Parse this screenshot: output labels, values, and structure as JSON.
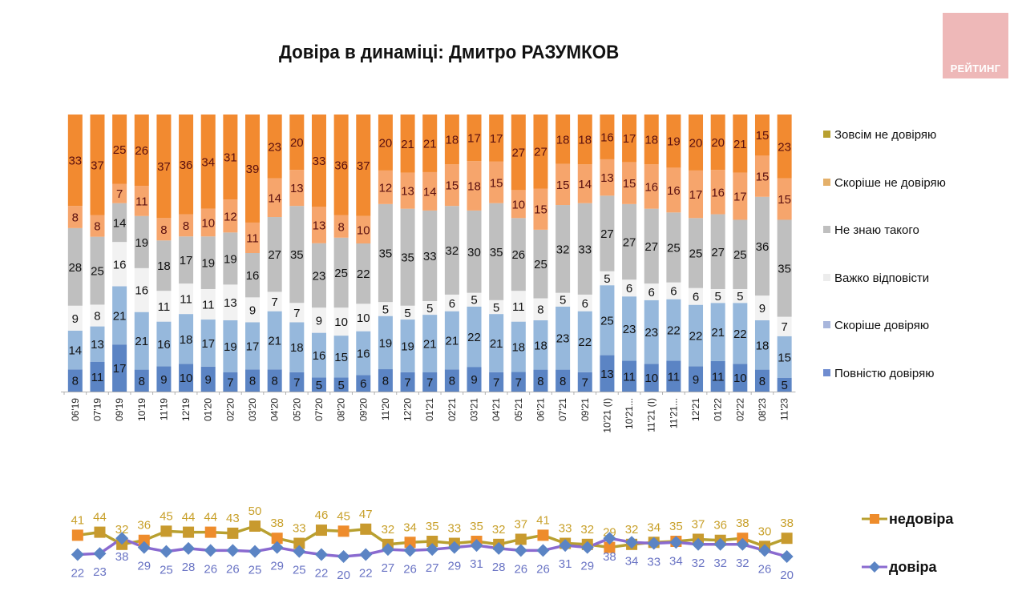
{
  "header": {
    "title": "Довіра в динаміці: Дмитро РАЗУМКОВ",
    "logo_text": "РЕЙТИНГ"
  },
  "colors": {
    "full_trust": "#5b84c4",
    "rather_trust": "#96b8dc",
    "hard_to_say": "#f2f2f2",
    "dont_know": "#bfbfbf",
    "rather_not_trust": "#f6a56c",
    "not_trust_at_all": "#f28a30",
    "distrust_line": "#b8a030",
    "distrust_marker": "#ee8c2c",
    "trust_line": "#8a6ad0",
    "trust_marker": "#5b84c4",
    "distrust_label": "#c8a02a",
    "trust_label": "#6a74c4"
  },
  "chart_data": [
    {
      "type": "bar",
      "stacked": true,
      "title": "Довіра в динаміці: Дмитро РАЗУМКОВ",
      "xlabel": "",
      "ylabel": "",
      "ylim": [
        0,
        100
      ],
      "grid": false,
      "legend_position": "right",
      "categories": [
        "06'19",
        "07'19",
        "09'19",
        "10'19",
        "11'19",
        "12'19",
        "01'20",
        "02'20",
        "03'20",
        "04'20",
        "05'20",
        "07'20",
        "08'20",
        "09'20",
        "11'20",
        "12'20",
        "01'21",
        "02'21",
        "03'21",
        "04'21",
        "05'21",
        "06'21",
        "07'21",
        "09'21",
        "10'21 (I)",
        "10'21...",
        "11'21 (I)",
        "11'21...",
        "12'21",
        "01'22",
        "02'22",
        "08'23",
        "11'23"
      ],
      "series": [
        {
          "name": "Повністю довіряю",
          "key": "full_trust",
          "values": [
            8,
            11,
            17,
            8,
            9,
            10,
            9,
            7,
            8,
            8,
            7,
            5,
            5,
            6,
            8,
            7,
            7,
            8,
            9,
            7,
            7,
            8,
            8,
            7,
            13,
            11,
            10,
            11,
            9,
            11,
            10,
            8,
            5
          ]
        },
        {
          "name": "Скоріше довіряю",
          "key": "rather_trust",
          "values": [
            14,
            13,
            21,
            21,
            16,
            18,
            17,
            19,
            17,
            21,
            18,
            16,
            15,
            16,
            19,
            19,
            21,
            21,
            22,
            21,
            18,
            18,
            23,
            22,
            25,
            23,
            23,
            22,
            22,
            21,
            22,
            18,
            15
          ]
        },
        {
          "name": "Важко відповісти",
          "key": "hard_to_say",
          "values": [
            9,
            8,
            16,
            16,
            11,
            11,
            11,
            13,
            9,
            7,
            7,
            9,
            10,
            10,
            5,
            5,
            5,
            6,
            5,
            5,
            11,
            8,
            5,
            6,
            5,
            6,
            6,
            6,
            6,
            5,
            5,
            9,
            7
          ]
        },
        {
          "name": "Не знаю такого",
          "key": "dont_know",
          "values": [
            28,
            25,
            14,
            19,
            18,
            17,
            19,
            19,
            16,
            27,
            35,
            23,
            25,
            22,
            35,
            35,
            33,
            32,
            30,
            35,
            26,
            25,
            32,
            33,
            27,
            27,
            27,
            25,
            25,
            27,
            25,
            36,
            35
          ]
        },
        {
          "name": "Скоріше не довіряю",
          "key": "rather_not_trust",
          "values": [
            8,
            8,
            7,
            11,
            8,
            8,
            10,
            12,
            11,
            14,
            13,
            13,
            8,
            10,
            12,
            13,
            14,
            15,
            18,
            15,
            10,
            15,
            15,
            14,
            13,
            15,
            16,
            16,
            17,
            16,
            17,
            15,
            15
          ]
        },
        {
          "name": "Зовсім не довіряю",
          "key": "not_trust_at_all",
          "values": [
            33,
            37,
            25,
            26,
            37,
            36,
            34,
            31,
            39,
            23,
            20,
            33,
            36,
            37,
            20,
            21,
            21,
            18,
            17,
            17,
            27,
            27,
            18,
            18,
            16,
            17,
            18,
            19,
            20,
            20,
            21,
            15,
            23
          ]
        }
      ],
      "legend_order": [
        "Зовсім не довіряю",
        "Скоріше не довіряю",
        "Не знаю такого",
        "Важко відповісти",
        "Скоріше довіряю",
        "Повністю довіряю"
      ]
    },
    {
      "type": "line",
      "title": "",
      "xlabel": "",
      "ylabel": "",
      "grid": false,
      "legend_position": "right",
      "categories": [
        "06'19",
        "07'19",
        "09'19",
        "10'19",
        "11'19",
        "12'19",
        "01'20",
        "02'20",
        "03'20",
        "04'20",
        "05'20",
        "07'20",
        "08'20",
        "09'20",
        "11'20",
        "12'20",
        "01'21",
        "02'21",
        "03'21",
        "04'21",
        "05'21",
        "06'21",
        "07'21",
        "09'21",
        "10'21 (I)",
        "10'21...",
        "11'21 (I)",
        "11'21...",
        "12'21",
        "01'22",
        "02'22",
        "08'23",
        "11'23"
      ],
      "series": [
        {
          "name": "недовіра",
          "marker": "square",
          "values": [
            41,
            44,
            32,
            36,
            45,
            44,
            44,
            43,
            50,
            38,
            33,
            46,
            45,
            47,
            32,
            34,
            35,
            33,
            35,
            32,
            37,
            41,
            33,
            32,
            29,
            32,
            34,
            35,
            37,
            36,
            38,
            30,
            38
          ]
        },
        {
          "name": "довіра",
          "marker": "diamond",
          "values": [
            22,
            23,
            38,
            29,
            25,
            28,
            26,
            26,
            25,
            29,
            25,
            22,
            20,
            22,
            27,
            26,
            27,
            29,
            31,
            28,
            26,
            26,
            31,
            29,
            38,
            34,
            33,
            34,
            32,
            32,
            32,
            26,
            20
          ]
        }
      ]
    }
  ]
}
